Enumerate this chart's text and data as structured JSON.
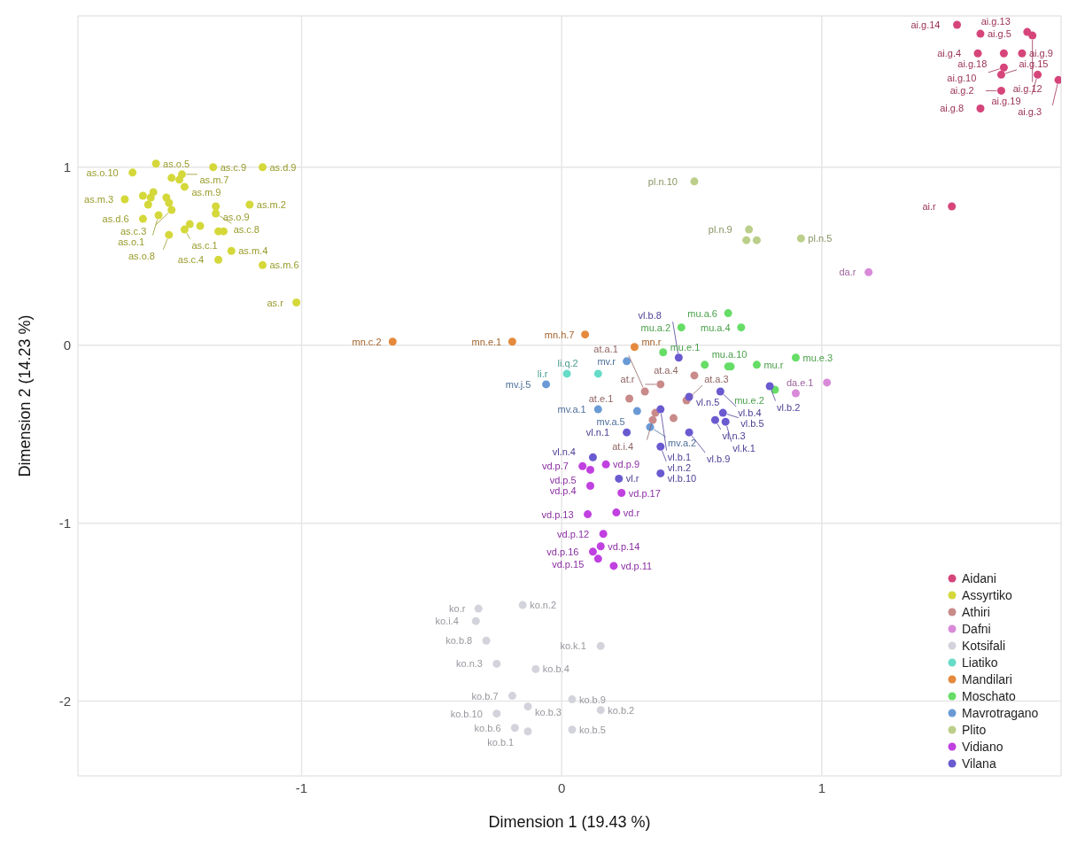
{
  "chart_data": {
    "type": "scatter",
    "xlabel": "Dimension 1 (19.43 %)",
    "ylabel": "Dimension 2 (14.23 %)",
    "xlim": [
      -1.86,
      1.92
    ],
    "ylim": [
      -2.42,
      1.85
    ],
    "xticks": [
      -1,
      0,
      1
    ],
    "yticks": [
      -2,
      -1,
      0,
      1
    ],
    "grid": true,
    "legend": "bottom right",
    "marker": "circle",
    "series": [
      {
        "name": "Aidani",
        "color": "#d6457a",
        "x": [
          1.52,
          1.61,
          1.79,
          1.81,
          1.6,
          1.7,
          1.77,
          1.7,
          1.69,
          1.83,
          1.91,
          1.69,
          1.61,
          1.5
        ],
        "values": [
          1.8,
          1.75,
          1.76,
          1.74,
          1.64,
          1.64,
          1.64,
          1.56,
          1.52,
          1.52,
          1.49,
          1.43,
          1.33,
          0.78
        ]
      },
      {
        "name": "Assyrtiko",
        "color": "#d4d83a",
        "x": [
          -1.56,
          -1.65,
          -1.34,
          -1.15,
          -1.46,
          -1.5,
          -1.47,
          -1.45,
          -1.61,
          -1.58,
          -1.57,
          -1.52,
          -1.68,
          -1.59,
          -1.51,
          -1.5,
          -1.33,
          -1.2,
          -1.33,
          -1.55,
          -1.61,
          -1.43,
          -1.39,
          -1.45,
          -1.32,
          -1.3,
          -1.51,
          -1.27,
          -1.32,
          -1.15,
          -1.02
        ],
        "values": [
          1.02,
          0.97,
          1.0,
          1.0,
          0.96,
          0.94,
          0.93,
          0.89,
          0.84,
          0.83,
          0.86,
          0.83,
          0.82,
          0.79,
          0.8,
          0.76,
          0.78,
          0.79,
          0.74,
          0.73,
          0.71,
          0.68,
          0.67,
          0.65,
          0.64,
          0.64,
          0.62,
          0.53,
          0.48,
          0.45,
          0.24
        ]
      },
      {
        "name": "Athiri",
        "color": "#c98a8a",
        "x": [
          0.51,
          0.38,
          0.32,
          0.26,
          0.48,
          0.36,
          0.35,
          0.43
        ],
        "values": [
          -0.17,
          -0.22,
          -0.26,
          -0.3,
          -0.31,
          -0.38,
          -0.42,
          -0.41
        ]
      },
      {
        "name": "Dafni",
        "color": "#d98ad9",
        "x": [
          1.18,
          1.02,
          0.9
        ],
        "values": [
          0.41,
          -0.21,
          -0.27
        ]
      },
      {
        "name": "Kotsifali",
        "color": "#d3d3dc",
        "x": [
          -0.15,
          -0.32,
          -0.33,
          -0.29,
          0.15,
          -0.25,
          -0.1,
          -0.19,
          0.04,
          -0.13,
          0.15,
          -0.25,
          -0.18,
          0.04,
          -0.13
        ],
        "values": [
          -1.46,
          -1.48,
          -1.55,
          -1.66,
          -1.69,
          -1.79,
          -1.82,
          -1.97,
          -1.99,
          -2.03,
          -2.05,
          -2.07,
          -2.15,
          -2.16,
          -2.17
        ]
      },
      {
        "name": "Liatiko",
        "color": "#66dbc8",
        "x": [
          0.02,
          0.14
        ],
        "values": [
          -0.16,
          -0.16
        ]
      },
      {
        "name": "Mandilari",
        "color": "#e58a3d",
        "x": [
          -0.65,
          -0.19,
          0.09,
          0.28
        ],
        "values": [
          0.02,
          0.02,
          0.06,
          -0.01
        ]
      },
      {
        "name": "Moschato",
        "color": "#66dd66",
        "x": [
          0.46,
          0.39,
          0.55,
          0.64,
          0.69,
          0.9,
          0.75,
          0.64,
          0.65,
          0.82
        ],
        "values": [
          0.1,
          -0.04,
          -0.11,
          0.18,
          0.1,
          -0.07,
          -0.11,
          -0.12,
          -0.12,
          -0.25
        ]
      },
      {
        "name": "Mavrotragano",
        "color": "#6a9ad6",
        "x": [
          0.25,
          -0.06,
          0.14,
          0.29,
          0.34
        ],
        "values": [
          -0.09,
          -0.22,
          -0.36,
          -0.37,
          -0.46
        ]
      },
      {
        "name": "Plito",
        "color": "#bccf8a",
        "x": [
          0.51,
          0.72,
          0.71,
          0.75,
          0.92
        ],
        "values": [
          0.92,
          0.65,
          0.59,
          0.59,
          0.6
        ]
      },
      {
        "name": "Vidiano",
        "color": "#c040e0",
        "x": [
          0.17,
          0.08,
          0.11,
          0.11,
          0.23,
          0.21,
          0.1,
          0.16,
          0.15,
          0.12,
          0.14,
          0.2
        ],
        "values": [
          -0.67,
          -0.68,
          -0.7,
          -0.79,
          -0.83,
          -0.94,
          -0.95,
          -1.06,
          -1.13,
          -1.16,
          -1.2,
          -1.24
        ]
      },
      {
        "name": "Vilana",
        "color": "#6a5ad0",
        "x": [
          0.45,
          0.49,
          0.61,
          0.38,
          0.62,
          0.59,
          0.63,
          0.25,
          0.49,
          0.8,
          0.38,
          0.12,
          0.38,
          0.22
        ],
        "values": [
          -0.07,
          -0.29,
          -0.26,
          -0.36,
          -0.38,
          -0.42,
          -0.43,
          -0.49,
          -0.49,
          -0.23,
          -0.57,
          -0.63,
          -0.72,
          -0.75
        ]
      }
    ],
    "annotations": [
      {
        "text": "ai.g.14",
        "x": 1.52,
        "y": 1.8
      },
      {
        "text": "ai.g.5",
        "x": 1.61,
        "y": 1.75
      },
      {
        "text": "ai.g.13",
        "x": 1.79,
        "y": 1.76
      },
      {
        "text": "ai.g.12",
        "x": 1.81,
        "y": 1.74
      },
      {
        "text": "ai.g.4",
        "x": 1.6,
        "y": 1.64
      },
      {
        "text": "ai.g.18",
        "x": 1.7,
        "y": 1.64
      },
      {
        "text": "ai.g.9",
        "x": 1.77,
        "y": 1.64
      },
      {
        "text": "ai.g.10",
        "x": 1.7,
        "y": 1.56
      },
      {
        "text": "ai.g.15",
        "x": 1.69,
        "y": 1.52
      },
      {
        "text": "ai.g.19",
        "x": 1.83,
        "y": 1.52
      },
      {
        "text": "ai.g.3",
        "x": 1.91,
        "y": 1.49
      },
      {
        "text": "ai.g.2",
        "x": 1.69,
        "y": 1.43
      },
      {
        "text": "ai.g.8",
        "x": 1.61,
        "y": 1.33
      },
      {
        "text": "ai.r",
        "x": 1.5,
        "y": 0.78
      },
      {
        "text": "as.o.5",
        "x": -1.56,
        "y": 1.02
      },
      {
        "text": "as.o.10",
        "x": -1.65,
        "y": 0.97
      },
      {
        "text": "as.c.9",
        "x": -1.34,
        "y": 1.0
      },
      {
        "text": "as.d.9",
        "x": -1.15,
        "y": 1.0
      },
      {
        "text": "as.m.7",
        "x": -1.46,
        "y": 0.96
      },
      {
        "text": "as.m.9",
        "x": -1.45,
        "y": 0.89
      },
      {
        "text": "as.m.3",
        "x": -1.68,
        "y": 0.82
      },
      {
        "text": "as.c.3",
        "x": -1.5,
        "y": 0.76
      },
      {
        "text": "as.o.9",
        "x": -1.33,
        "y": 0.78
      },
      {
        "text": "as.m.2",
        "x": -1.2,
        "y": 0.79
      },
      {
        "text": "as.c.8",
        "x": -1.33,
        "y": 0.74
      },
      {
        "text": "as.o.1",
        "x": -1.55,
        "y": 0.73
      },
      {
        "text": "as.d.6",
        "x": -1.61,
        "y": 0.71
      },
      {
        "text": "as.c.1",
        "x": -1.45,
        "y": 0.65
      },
      {
        "text": "as.o.8",
        "x": -1.51,
        "y": 0.62
      },
      {
        "text": "as.m.4",
        "x": -1.27,
        "y": 0.53
      },
      {
        "text": "as.c.4",
        "x": -1.32,
        "y": 0.48
      },
      {
        "text": "as.m.6",
        "x": -1.15,
        "y": 0.45
      },
      {
        "text": "as.r",
        "x": -1.02,
        "y": 0.24
      },
      {
        "text": "at.a.4",
        "x": 0.51,
        "y": -0.17
      },
      {
        "text": "at.r",
        "x": 0.38,
        "y": -0.22
      },
      {
        "text": "at.a.1",
        "x": 0.32,
        "y": -0.26
      },
      {
        "text": "at.e.1",
        "x": 0.26,
        "y": -0.3
      },
      {
        "text": "at.a.3",
        "x": 0.48,
        "y": -0.31
      },
      {
        "text": "at.i.4",
        "x": 0.35,
        "y": -0.42
      },
      {
        "text": "da.r",
        "x": 1.18,
        "y": 0.41
      },
      {
        "text": "da.e.1",
        "x": 1.02,
        "y": -0.21
      },
      {
        "text": "ko.n.2",
        "x": -0.15,
        "y": -1.46
      },
      {
        "text": "ko.r",
        "x": -0.32,
        "y": -1.48
      },
      {
        "text": "ko.i.4",
        "x": -0.33,
        "y": -1.55
      },
      {
        "text": "ko.b.8",
        "x": -0.29,
        "y": -1.66
      },
      {
        "text": "ko.k.1",
        "x": 0.15,
        "y": -1.69
      },
      {
        "text": "ko.n.3",
        "x": -0.25,
        "y": -1.79
      },
      {
        "text": "ko.b.4",
        "x": -0.1,
        "y": -1.82
      },
      {
        "text": "ko.b.7",
        "x": -0.19,
        "y": -1.97
      },
      {
        "text": "ko.b.9",
        "x": 0.04,
        "y": -1.99
      },
      {
        "text": "ko.b.3",
        "x": -0.13,
        "y": -2.03
      },
      {
        "text": "ko.b.2",
        "x": 0.15,
        "y": -2.05
      },
      {
        "text": "ko.b.10",
        "x": -0.25,
        "y": -2.07
      },
      {
        "text": "ko.b.6",
        "x": -0.18,
        "y": -2.15
      },
      {
        "text": "ko.b.5",
        "x": 0.04,
        "y": -2.16
      },
      {
        "text": "ko.b.1",
        "x": -0.13,
        "y": -2.17
      },
      {
        "text": "li.r",
        "x": 0.02,
        "y": -0.16
      },
      {
        "text": "li.q.2",
        "x": 0.14,
        "y": -0.16
      },
      {
        "text": "mn.c.2",
        "x": -0.65,
        "y": 0.02
      },
      {
        "text": "mn.e.1",
        "x": -0.19,
        "y": 0.02
      },
      {
        "text": "mn.h.7",
        "x": 0.09,
        "y": 0.06
      },
      {
        "text": "mn.r",
        "x": 0.28,
        "y": -0.01
      },
      {
        "text": "mu.a.2",
        "x": 0.46,
        "y": 0.1
      },
      {
        "text": "mu.e.1",
        "x": 0.39,
        "y": -0.04
      },
      {
        "text": "mu.a.10",
        "x": 0.55,
        "y": -0.11
      },
      {
        "text": "mu.a.6",
        "x": 0.64,
        "y": 0.18
      },
      {
        "text": "mu.a.4",
        "x": 0.69,
        "y": 0.1
      },
      {
        "text": "mu.e.3",
        "x": 0.9,
        "y": -0.07
      },
      {
        "text": "mu.r",
        "x": 0.75,
        "y": -0.11
      },
      {
        "text": "mu.e.2",
        "x": 0.82,
        "y": -0.25
      },
      {
        "text": "mv.r",
        "x": 0.25,
        "y": -0.09
      },
      {
        "text": "mv.j.5",
        "x": -0.06,
        "y": -0.22
      },
      {
        "text": "mv.a.1",
        "x": 0.14,
        "y": -0.36
      },
      {
        "text": "mv.a.5",
        "x": 0.29,
        "y": -0.37
      },
      {
        "text": "mv.a.2",
        "x": 0.34,
        "y": -0.46
      },
      {
        "text": "pl.n.10",
        "x": 0.51,
        "y": 0.92
      },
      {
        "text": "pl.n.9",
        "x": 0.72,
        "y": 0.65
      },
      {
        "text": "pl.n.5",
        "x": 0.92,
        "y": 0.6
      },
      {
        "text": "vd.p.9",
        "x": 0.17,
        "y": -0.67
      },
      {
        "text": "vd.p.7",
        "x": 0.08,
        "y": -0.68
      },
      {
        "text": "vd.p.5",
        "x": 0.11,
        "y": -0.7
      },
      {
        "text": "vd.p.4",
        "x": 0.11,
        "y": -0.79
      },
      {
        "text": "vd.p.17",
        "x": 0.23,
        "y": -0.83
      },
      {
        "text": "vd.r",
        "x": 0.21,
        "y": -0.94
      },
      {
        "text": "vd.p.13",
        "x": 0.1,
        "y": -0.95
      },
      {
        "text": "vd.p.12",
        "x": 0.16,
        "y": -1.06
      },
      {
        "text": "vd.p.14",
        "x": 0.15,
        "y": -1.13
      },
      {
        "text": "vd.p.16",
        "x": 0.12,
        "y": -1.16
      },
      {
        "text": "vd.p.15",
        "x": 0.14,
        "y": -1.2
      },
      {
        "text": "vd.p.11",
        "x": 0.2,
        "y": -1.24
      },
      {
        "text": "vl.b.8",
        "x": 0.45,
        "y": -0.07
      },
      {
        "text": "vl.n.5",
        "x": 0.49,
        "y": -0.29
      },
      {
        "text": "vl.b.4",
        "x": 0.61,
        "y": -0.26
      },
      {
        "text": "vl.b.1",
        "x": 0.38,
        "y": -0.36
      },
      {
        "text": "vl.b.5",
        "x": 0.62,
        "y": -0.38
      },
      {
        "text": "vl.n.3",
        "x": 0.59,
        "y": -0.42
      },
      {
        "text": "vl.k.1",
        "x": 0.63,
        "y": -0.43
      },
      {
        "text": "vl.n.1",
        "x": 0.25,
        "y": -0.49
      },
      {
        "text": "vl.b.9",
        "x": 0.49,
        "y": -0.49
      },
      {
        "text": "vl.b.2",
        "x": 0.8,
        "y": -0.23
      },
      {
        "text": "vl.n.2",
        "x": 0.38,
        "y": -0.57
      },
      {
        "text": "vl.n.4",
        "x": 0.12,
        "y": -0.63
      },
      {
        "text": "vl.b.10",
        "x": 0.38,
        "y": -0.72
      },
      {
        "text": "vl.r",
        "x": 0.22,
        "y": -0.75
      }
    ]
  }
}
